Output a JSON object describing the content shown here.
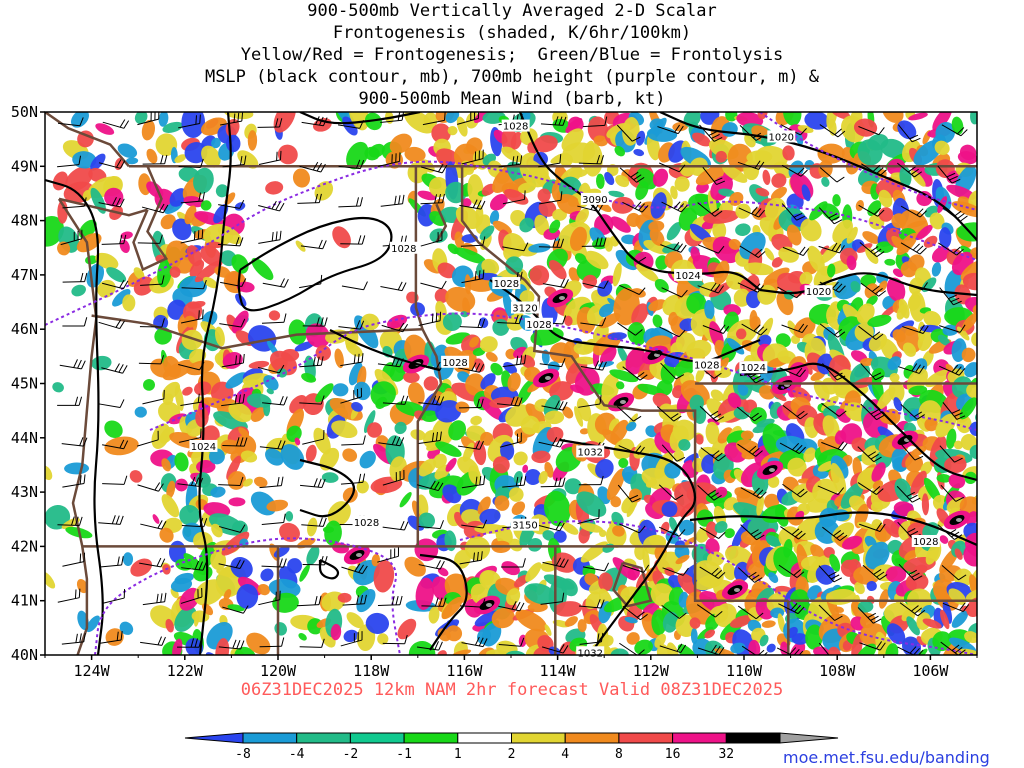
{
  "title_lines": [
    "900-500mb Vertically Averaged 2-D Scalar",
    "Frontogenesis (shaded, K/6hr/100km)",
    "Yellow/Red = Frontogenesis;  Green/Blue = Frontolysis",
    "MSLP (black contour, mb), 700mb height (purple contour, m) &",
    "900-500mb Mean Wind (barb, kt)"
  ],
  "subtitle": "06Z31DEC2025 12km NAM 2hr forecast Valid 08Z31DEC2025",
  "credit": "moe.met.fsu.edu/banding",
  "map": {
    "lon_range": [
      -125,
      -105
    ],
    "lat_range": [
      40,
      50
    ],
    "lat_ticks": [
      "50N",
      "49N",
      "48N",
      "47N",
      "46N",
      "45N",
      "44N",
      "43N",
      "42N",
      "41N",
      "40N"
    ],
    "lon_ticks": [
      "124W",
      "122W",
      "120W",
      "118W",
      "116W",
      "114W",
      "112W",
      "110W",
      "108W",
      "106W"
    ]
  },
  "colorbar": {
    "labels": [
      "-8",
      "-4",
      "-2",
      "-1",
      "1",
      "2",
      "4",
      "8",
      "16",
      "32"
    ],
    "colors": [
      "#2a44ee",
      "#1a9bd6",
      "#22bb88",
      "#11c98f",
      "#18d818",
      "#ffffff",
      "#e1d532",
      "#f08a1e",
      "#f04a4a",
      "#ee1288",
      "#000000",
      "#a0a0a0"
    ]
  },
  "mslp_labels": [
    {
      "text": "1028",
      "lon": -114.9,
      "lat": 49.75
    },
    {
      "text": "1020",
      "lon": -109.2,
      "lat": 49.55
    },
    {
      "text": "1028",
      "lon": -117.3,
      "lat": 47.5
    },
    {
      "text": "1028",
      "lon": -115.1,
      "lat": 46.85
    },
    {
      "text": "1024",
      "lon": -111.2,
      "lat": 47.0
    },
    {
      "text": "1020",
      "lon": -108.4,
      "lat": 46.7
    },
    {
      "text": "1028",
      "lon": -114.4,
      "lat": 46.1
    },
    {
      "text": "1028",
      "lon": -116.2,
      "lat": 45.4
    },
    {
      "text": "1028",
      "lon": -110.8,
      "lat": 45.35
    },
    {
      "text": "1024",
      "lon": -109.8,
      "lat": 45.3
    },
    {
      "text": "1024",
      "lon": -121.6,
      "lat": 43.85
    },
    {
      "text": "1032",
      "lon": -113.3,
      "lat": 43.75
    },
    {
      "text": "1028",
      "lon": -118.1,
      "lat": 42.45
    },
    {
      "text": "1028",
      "lon": -106.1,
      "lat": 42.1
    },
    {
      "text": "1032",
      "lon": -113.3,
      "lat": 40.05
    }
  ],
  "height_labels": [
    {
      "text": "3090",
      "lon": -113.2,
      "lat": 48.4
    },
    {
      "text": "3120",
      "lon": -114.7,
      "lat": 46.4
    },
    {
      "text": "3150",
      "lon": -114.7,
      "lat": 42.4
    }
  ]
}
